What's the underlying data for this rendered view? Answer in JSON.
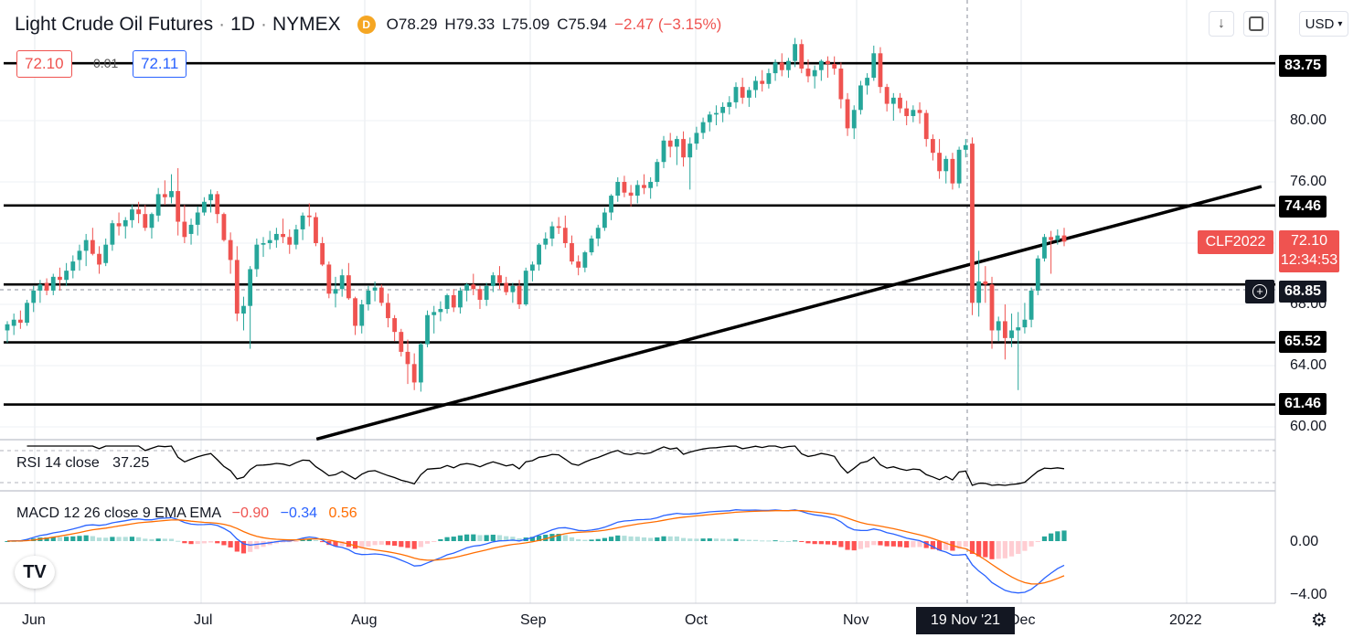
{
  "header": {
    "symbol": "Light Crude Oil Futures",
    "sep": "·",
    "interval": "1D",
    "exchange": "NYMEX",
    "dot_label": "D",
    "open": "O78.29",
    "high": "H79.33",
    "low": "L75.09",
    "close": "C75.94",
    "change": "−2.47 (−3.15%)",
    "currency": "USD"
  },
  "quote": {
    "sell": "72.10",
    "spread": "0.01",
    "buy": "72.11"
  },
  "price_axis": {
    "ticks": [
      "80.00",
      "76.00",
      "68.00",
      "64.00",
      "60.00"
    ],
    "level_tags": [
      "83.75",
      "74.46",
      "65.52",
      "61.46"
    ],
    "crosshair_price": "68.85",
    "symbol_tag": "CLF2022",
    "last_price": "72.10",
    "countdown": "12:34:53"
  },
  "time_axis": {
    "labels": [
      "Jun",
      "Jul",
      "Aug",
      "Sep",
      "Oct",
      "Nov",
      "Dec",
      "2022"
    ],
    "crosshair_date": "19 Nov '21"
  },
  "rsi": {
    "label": "RSI 14 close",
    "value": "37.25"
  },
  "macd": {
    "label": "MACD 12 26 close 9 EMA EMA",
    "macd_value": "−0.90",
    "signal_value": "−0.34",
    "hist_value": "0.56",
    "ticks": [
      "0.00",
      "−4.00"
    ]
  },
  "colors": {
    "up": "#26a69a",
    "down": "#ef5350",
    "macd_line": "#2962ff",
    "signal_line": "#ff6d00",
    "tag_bg": "#000000"
  },
  "icons": {
    "download": "arrow-down-icon",
    "fullscreen": "fullscreen-icon",
    "settings": "gear-icon",
    "crosshair": "plus-circle-icon",
    "logo": "tradingview-logo"
  },
  "chart_data": {
    "type": "candlestick",
    "title": "Light Crude Oil Futures · 1D · NYMEX",
    "x_range": [
      "2021-06-01",
      "2022-01-10"
    ],
    "y_range": [
      59,
      86
    ],
    "horizontal_levels": [
      83.75,
      74.46,
      69.3,
      65.52,
      61.46
    ],
    "trendline": {
      "start": {
        "date": "2021-07-26",
        "price": 59.2
      },
      "end": {
        "date": "2022-01-19",
        "price": 75.7
      }
    },
    "candles": [
      [
        66.3,
        66.9,
        65.5,
        66.7
      ],
      [
        66.6,
        67.4,
        66.0,
        67.0
      ],
      [
        67.0,
        67.6,
        66.4,
        66.8
      ],
      [
        66.8,
        68.3,
        66.6,
        68.1
      ],
      [
        68.1,
        69.2,
        67.5,
        68.9
      ],
      [
        68.9,
        69.6,
        68.1,
        69.3
      ],
      [
        69.4,
        69.7,
        68.6,
        68.9
      ],
      [
        68.9,
        70.0,
        68.6,
        69.8
      ],
      [
        69.8,
        70.4,
        68.9,
        69.6
      ],
      [
        69.6,
        70.7,
        69.2,
        70.2
      ],
      [
        70.2,
        71.2,
        69.7,
        70.8
      ],
      [
        70.9,
        71.9,
        70.2,
        71.5
      ],
      [
        71.5,
        72.6,
        70.5,
        72.2
      ],
      [
        72.2,
        73.0,
        71.2,
        71.3
      ],
      [
        71.3,
        71.8,
        70.0,
        70.6
      ],
      [
        70.7,
        72.3,
        70.5,
        71.9
      ],
      [
        71.9,
        73.5,
        71.5,
        73.3
      ],
      [
        73.3,
        74.0,
        72.5,
        73.1
      ],
      [
        73.1,
        73.7,
        72.3,
        73.5
      ],
      [
        73.5,
        74.5,
        73.0,
        74.2
      ],
      [
        74.2,
        74.7,
        73.3,
        73.9
      ],
      [
        73.9,
        74.5,
        72.8,
        73.0
      ],
      [
        73.0,
        74.0,
        72.3,
        73.9
      ],
      [
        73.8,
        75.6,
        73.4,
        75.2
      ],
      [
        75.2,
        76.1,
        74.5,
        75.0
      ],
      [
        75.0,
        76.5,
        74.6,
        75.4
      ],
      [
        75.4,
        76.9,
        72.5,
        73.4
      ],
      [
        73.4,
        74.5,
        72.0,
        72.4
      ],
      [
        72.6,
        73.6,
        71.9,
        73.2
      ],
      [
        73.2,
        74.4,
        72.5,
        74.0
      ],
      [
        74.0,
        75.0,
        73.8,
        74.7
      ],
      [
        74.8,
        75.5,
        74.0,
        75.2
      ],
      [
        75.2,
        75.4,
        73.3,
        73.9
      ],
      [
        73.9,
        74.0,
        72.1,
        72.2
      ],
      [
        72.2,
        72.7,
        70.0,
        70.9
      ],
      [
        70.9,
        71.8,
        66.9,
        67.4
      ],
      [
        67.4,
        68.5,
        66.3,
        67.9
      ],
      [
        67.9,
        70.5,
        65.1,
        70.3
      ],
      [
        70.3,
        72.3,
        69.8,
        71.9
      ],
      [
        71.9,
        72.4,
        71.1,
        72.0
      ],
      [
        72.0,
        72.8,
        71.6,
        72.2
      ],
      [
        72.2,
        73.0,
        71.7,
        72.6
      ],
      [
        72.6,
        73.6,
        72.0,
        72.4
      ],
      [
        72.4,
        72.9,
        71.3,
        71.9
      ],
      [
        71.9,
        73.2,
        71.6,
        72.9
      ],
      [
        72.9,
        74.0,
        72.2,
        73.8
      ],
      [
        73.8,
        74.6,
        73.1,
        73.7
      ],
      [
        73.7,
        74.0,
        71.8,
        72.0
      ],
      [
        72.0,
        72.4,
        70.5,
        70.6
      ],
      [
        70.6,
        70.8,
        68.4,
        68.7
      ],
      [
        68.7,
        69.8,
        67.8,
        69.0
      ],
      [
        69.0,
        70.3,
        68.5,
        69.9
      ],
      [
        69.9,
        70.7,
        68.3,
        68.4
      ],
      [
        68.4,
        68.5,
        66.0,
        66.6
      ],
      [
        66.6,
        68.3,
        66.1,
        68.0
      ],
      [
        68.0,
        69.2,
        67.6,
        68.9
      ],
      [
        68.9,
        69.5,
        68.2,
        69.1
      ],
      [
        69.1,
        69.3,
        67.9,
        68.1
      ],
      [
        68.1,
        68.7,
        66.5,
        67.1
      ],
      [
        67.1,
        67.3,
        65.6,
        66.2
      ],
      [
        66.2,
        66.4,
        64.6,
        64.9
      ],
      [
        64.9,
        65.7,
        62.8,
        64.1
      ],
      [
        64.1,
        64.8,
        62.4,
        62.9
      ],
      [
        62.9,
        65.5,
        62.3,
        65.4
      ],
      [
        65.4,
        67.6,
        65.2,
        67.3
      ],
      [
        67.3,
        67.9,
        66.1,
        67.5
      ],
      [
        67.5,
        68.2,
        66.9,
        67.7
      ],
      [
        67.7,
        68.7,
        67.4,
        68.6
      ],
      [
        68.6,
        69.0,
        67.5,
        67.8
      ],
      [
        67.8,
        69.1,
        67.4,
        68.9
      ],
      [
        68.9,
        69.4,
        68.2,
        69.3
      ],
      [
        69.3,
        70.0,
        68.6,
        69.0
      ],
      [
        69.0,
        69.2,
        67.7,
        68.3
      ],
      [
        68.3,
        69.4,
        67.9,
        69.2
      ],
      [
        69.2,
        70.1,
        68.8,
        69.9
      ],
      [
        69.9,
        70.5,
        69.0,
        69.4
      ],
      [
        69.4,
        69.8,
        68.6,
        68.8
      ],
      [
        68.8,
        69.4,
        68.1,
        69.2
      ],
      [
        69.2,
        69.6,
        67.7,
        68.0
      ],
      [
        68.0,
        70.4,
        67.9,
        70.2
      ],
      [
        70.2,
        70.8,
        69.5,
        70.6
      ],
      [
        70.6,
        72.0,
        70.2,
        71.9
      ],
      [
        71.9,
        72.7,
        71.6,
        72.3
      ],
      [
        72.3,
        73.4,
        71.8,
        73.1
      ],
      [
        73.1,
        73.7,
        72.6,
        73.0
      ],
      [
        73.0,
        73.8,
        71.7,
        72.0
      ],
      [
        72.0,
        72.5,
        70.6,
        70.8
      ],
      [
        70.8,
        71.2,
        69.9,
        70.4
      ],
      [
        70.4,
        71.5,
        70.1,
        71.4
      ],
      [
        71.4,
        72.5,
        71.2,
        72.3
      ],
      [
        72.3,
        73.2,
        71.8,
        73.0
      ],
      [
        73.0,
        74.3,
        72.8,
        74.0
      ],
      [
        74.0,
        75.2,
        73.5,
        75.1
      ],
      [
        75.1,
        76.3,
        74.7,
        76.0
      ],
      [
        76.0,
        76.4,
        75.0,
        75.3
      ],
      [
        75.3,
        75.8,
        74.4,
        75.1
      ],
      [
        75.1,
        76.1,
        74.6,
        75.8
      ],
      [
        75.8,
        76.5,
        75.2,
        75.6
      ],
      [
        75.6,
        76.3,
        74.9,
        76.0
      ],
      [
        76.0,
        77.5,
        75.7,
        77.3
      ],
      [
        77.3,
        79.0,
        76.9,
        78.7
      ],
      [
        78.7,
        79.2,
        77.6,
        78.3
      ],
      [
        78.3,
        79.0,
        77.1,
        78.8
      ],
      [
        78.8,
        79.3,
        77.0,
        77.6
      ],
      [
        77.6,
        78.9,
        75.5,
        78.5
      ],
      [
        78.5,
        79.6,
        78.1,
        79.2
      ],
      [
        79.2,
        80.2,
        78.8,
        79.9
      ],
      [
        79.9,
        80.6,
        79.3,
        80.4
      ],
      [
        80.4,
        81.0,
        79.7,
        80.5
      ],
      [
        80.5,
        81.2,
        79.9,
        80.9
      ],
      [
        80.9,
        81.6,
        80.4,
        81.2
      ],
      [
        81.2,
        82.5,
        80.8,
        82.2
      ],
      [
        82.2,
        82.8,
        81.1,
        81.5
      ],
      [
        81.5,
        82.2,
        80.9,
        82.0
      ],
      [
        82.0,
        82.9,
        81.5,
        82.6
      ],
      [
        82.6,
        83.3,
        81.9,
        82.4
      ],
      [
        82.4,
        83.4,
        82.1,
        83.1
      ],
      [
        83.1,
        84.0,
        82.6,
        83.8
      ],
      [
        83.8,
        84.4,
        82.9,
        83.3
      ],
      [
        83.3,
        84.1,
        82.8,
        83.9
      ],
      [
        83.9,
        85.4,
        83.5,
        85.0
      ],
      [
        85.0,
        85.3,
        83.1,
        83.4
      ],
      [
        83.4,
        84.0,
        82.5,
        82.9
      ],
      [
        82.9,
        83.6,
        82.1,
        83.3
      ],
      [
        83.3,
        84.0,
        82.6,
        83.9
      ],
      [
        83.9,
        84.2,
        82.8,
        83.7
      ],
      [
        83.7,
        84.2,
        83.0,
        83.4
      ],
      [
        83.4,
        83.8,
        80.8,
        81.4
      ],
      [
        81.4,
        81.8,
        79.0,
        79.5
      ],
      [
        79.5,
        81.0,
        78.8,
        80.7
      ],
      [
        80.7,
        82.6,
        80.4,
        82.3
      ],
      [
        82.3,
        83.1,
        81.7,
        82.8
      ],
      [
        82.8,
        84.9,
        82.6,
        84.4
      ],
      [
        84.4,
        84.8,
        81.8,
        82.2
      ],
      [
        82.2,
        82.4,
        80.6,
        81.1
      ],
      [
        81.1,
        81.8,
        80.0,
        81.5
      ],
      [
        81.5,
        81.8,
        80.5,
        80.8
      ],
      [
        80.8,
        81.3,
        79.7,
        80.3
      ],
      [
        80.3,
        81.0,
        79.9,
        80.7
      ],
      [
        80.7,
        81.2,
        79.8,
        80.5
      ],
      [
        80.5,
        80.7,
        78.3,
        78.8
      ],
      [
        78.8,
        79.1,
        77.4,
        77.9
      ],
      [
        77.9,
        78.8,
        76.2,
        76.7
      ],
      [
        76.7,
        77.7,
        75.9,
        77.5
      ],
      [
        77.5,
        77.9,
        75.5,
        75.9
      ],
      [
        75.9,
        78.3,
        75.6,
        78.1
      ],
      [
        78.1,
        78.8,
        77.6,
        78.4
      ],
      [
        78.5,
        78.9,
        67.3,
        68.1
      ],
      [
        68.1,
        71.5,
        67.2,
        69.5
      ],
      [
        69.5,
        70.5,
        68.1,
        69.3
      ],
      [
        69.3,
        69.8,
        65.1,
        66.3
      ],
      [
        66.3,
        67.2,
        65.6,
        66.9
      ],
      [
        66.9,
        68.0,
        64.4,
        65.8
      ],
      [
        65.8,
        67.4,
        65.2,
        66.3
      ],
      [
        66.3,
        67.5,
        62.4,
        66.5
      ],
      [
        66.5,
        68.1,
        66.1,
        67.0
      ],
      [
        67.0,
        69.1,
        66.5,
        68.9
      ],
      [
        68.9,
        71.2,
        68.6,
        71.0
      ],
      [
        71.0,
        72.6,
        70.8,
        72.4
      ],
      [
        72.4,
        72.8,
        70.0,
        72.2
      ],
      [
        72.2,
        72.9,
        71.9,
        72.5
      ],
      [
        72.5,
        73.0,
        71.8,
        72.1
      ]
    ]
  }
}
